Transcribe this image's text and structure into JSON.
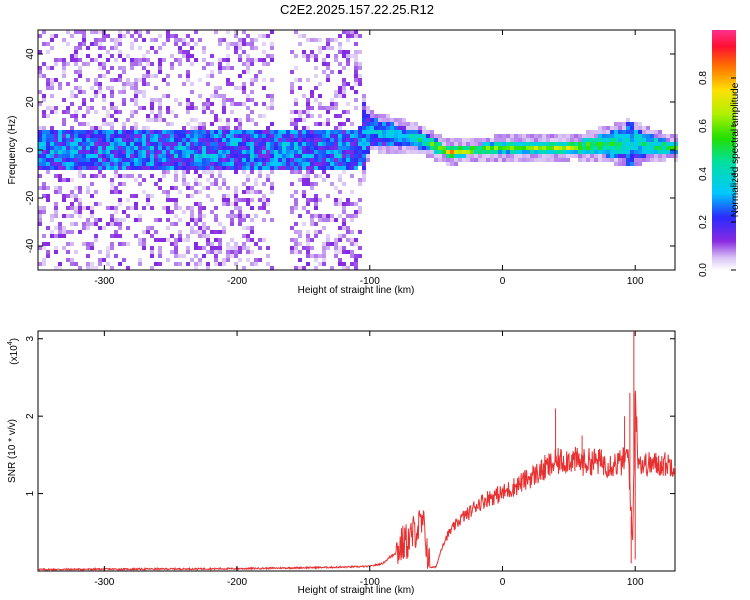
{
  "figure_title": "C2E2.2025.157.22.25.R12",
  "chart_data": [
    {
      "type": "heatmap",
      "title": "",
      "xlabel": "Height of straight line (km)",
      "ylabel": "Frequency (Hz)",
      "xlim": [
        -350,
        130
      ],
      "ylim": [
        -50,
        50
      ],
      "xticks": [
        -300,
        -200,
        -100,
        0,
        100
      ],
      "yticks": [
        -40,
        -20,
        0,
        20,
        40
      ],
      "colorbar": {
        "label": "Normalized spectral amplitude",
        "range": [
          0,
          1
        ],
        "ticks": [
          0.0,
          0.2,
          0.4,
          0.6,
          0.8
        ]
      },
      "description_points": [
        {
          "x": -350,
          "center_freq": 0,
          "spread_hz": 50,
          "amplitude": 0.15
        },
        {
          "x": -110,
          "center_freq": 0,
          "spread_hz": 50,
          "amplitude": 0.2
        },
        {
          "x": -100,
          "center_freq": 8,
          "spread_hz": 10,
          "amplitude": 0.35
        },
        {
          "x": -80,
          "center_freq": 6,
          "spread_hz": 8,
          "amplitude": 0.4
        },
        {
          "x": -60,
          "center_freq": 4,
          "spread_hz": 6,
          "amplitude": 0.45
        },
        {
          "x": -40,
          "center_freq": -1,
          "spread_hz": 4,
          "amplitude": 0.8
        },
        {
          "x": -20,
          "center_freq": 0,
          "spread_hz": 3,
          "amplitude": 0.6
        },
        {
          "x": 0,
          "center_freq": 1,
          "spread_hz": 3,
          "amplitude": 0.6
        },
        {
          "x": 50,
          "center_freq": 1,
          "spread_hz": 3,
          "amplitude": 0.7
        },
        {
          "x": 95,
          "center_freq": 3,
          "spread_hz": 12,
          "amplitude": 0.4
        },
        {
          "x": 130,
          "center_freq": 1,
          "spread_hz": 3,
          "amplitude": 0.55
        }
      ]
    },
    {
      "type": "line",
      "title": "",
      "xlabel": "Height of straight line (km)",
      "ylabel": "SNR (10 * v/v)",
      "y_multiplier": "(x10",
      "y_multiplier_exp": "4",
      "y_multiplier_close": ")",
      "xlim": [
        -350,
        130
      ],
      "ylim": [
        0,
        3.1
      ],
      "xticks": [
        -300,
        -200,
        -100,
        0,
        100
      ],
      "yticks": [
        1,
        2,
        3
      ],
      "color": "#e83030",
      "series": [
        {
          "x": [
            -350,
            -200,
            -120,
            -100,
            -90,
            -80,
            -75,
            -70,
            -65,
            -60,
            -58,
            -55,
            -50,
            -45,
            -40,
            -35,
            -30,
            -25,
            -20,
            -10,
            0,
            10,
            20,
            30,
            40,
            50,
            60,
            70,
            80,
            90,
            95,
            98,
            100,
            102,
            105,
            110,
            120,
            130
          ],
          "y": [
            0.02,
            0.03,
            0.05,
            0.06,
            0.1,
            0.25,
            0.35,
            0.4,
            0.55,
            0.6,
            0.45,
            0.05,
            0.05,
            0.35,
            0.5,
            0.6,
            0.7,
            0.75,
            0.85,
            0.95,
            1.0,
            1.1,
            1.2,
            1.3,
            1.4,
            1.45,
            1.4,
            1.42,
            1.38,
            1.4,
            1.5,
            0.3,
            2.3,
            1.5,
            1.38,
            1.38,
            1.38,
            1.38
          ]
        }
      ],
      "spikes": [
        {
          "x": 40,
          "y": 2.1
        },
        {
          "x": 60,
          "y": 1.75
        },
        {
          "x": 92,
          "y": 2.0
        },
        {
          "x": 96,
          "y": 2.3
        },
        {
          "x": 99,
          "y": 3.1
        },
        {
          "x": 100,
          "y": 0.15
        },
        {
          "x": 97,
          "y": 0.1
        }
      ]
    }
  ]
}
